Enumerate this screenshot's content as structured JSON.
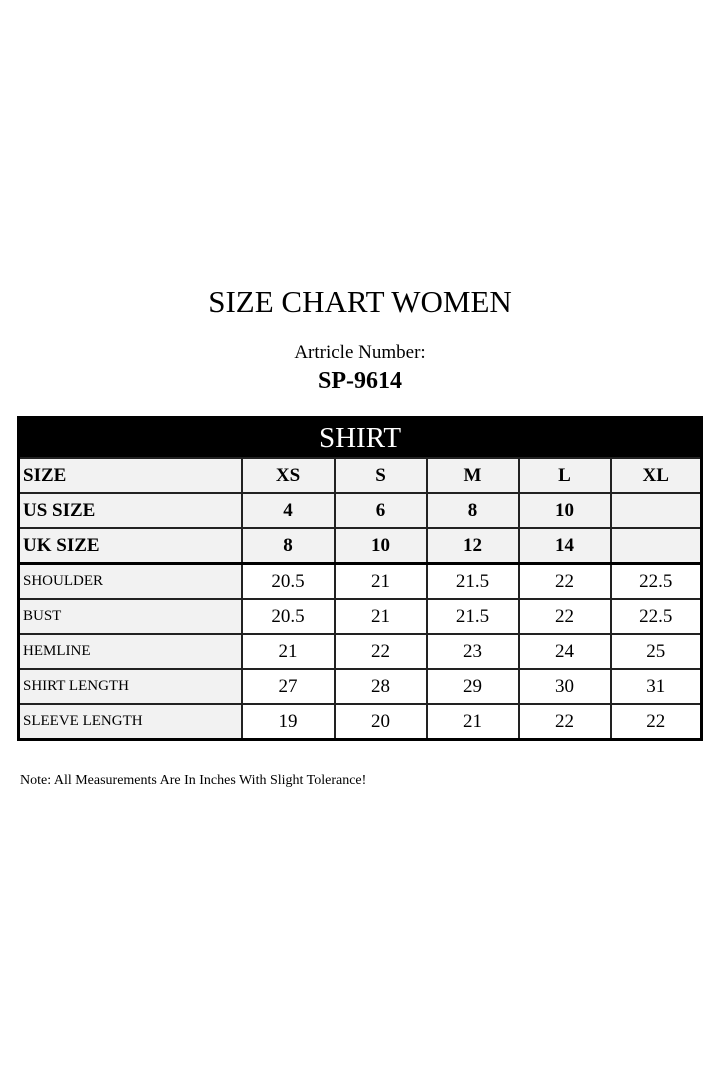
{
  "title": "SIZE CHART WOMEN",
  "article_label": "Artricle Number:",
  "article_number": "SP-9614",
  "section": "SHIRT",
  "header_rows": [
    {
      "label": "SIZE",
      "values": [
        "XS",
        "S",
        "M",
        "L",
        "XL"
      ]
    },
    {
      "label": "US SIZE",
      "values": [
        "4",
        "6",
        "8",
        "10",
        ""
      ]
    },
    {
      "label": "UK SIZE",
      "values": [
        "8",
        "10",
        "12",
        "14",
        ""
      ]
    }
  ],
  "measure_rows": [
    {
      "label": "SHOULDER",
      "values": [
        "20.5",
        "21",
        "21.5",
        "22",
        "22.5"
      ]
    },
    {
      "label": "BUST",
      "values": [
        "20.5",
        "21",
        "21.5",
        "22",
        "22.5"
      ]
    },
    {
      "label": "HEMLINE",
      "values": [
        "21",
        "22",
        "23",
        "24",
        "25"
      ]
    },
    {
      "label": "SHIRT LENGTH",
      "values": [
        "27",
        "28",
        "29",
        "30",
        "31"
      ]
    },
    {
      "label": "SLEEVE LENGTH",
      "values": [
        "19",
        "20",
        "21",
        "22",
        "22"
      ]
    }
  ],
  "note": "Note: All Measurements Are In Inches With Slight Tolerance!"
}
